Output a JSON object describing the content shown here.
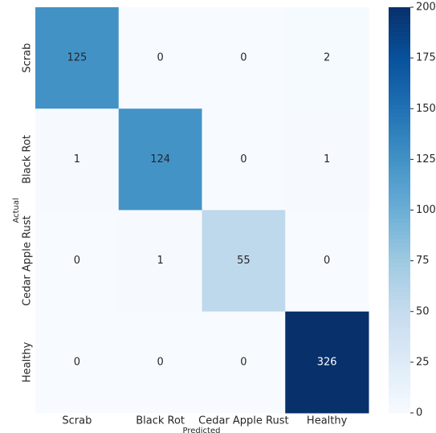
{
  "chart_data": {
    "type": "heatmap",
    "x_categories": [
      "Scrab",
      "Black Rot",
      "Cedar Apple Rust",
      "Healthy"
    ],
    "y_categories": [
      "Scrab",
      "Black Rot",
      "Cedar Apple Rust",
      "Healthy"
    ],
    "values": [
      [
        125,
        0,
        0,
        2
      ],
      [
        1,
        124,
        0,
        1
      ],
      [
        0,
        1,
        55,
        0
      ],
      [
        0,
        0,
        0,
        326
      ]
    ],
    "xlabel": "Predicted",
    "ylabel": "Actual",
    "colormap": "Blues",
    "zlim": [
      0,
      200
    ],
    "zticks": [
      0,
      25,
      50,
      75,
      100,
      125,
      150,
      175,
      200
    ]
  }
}
